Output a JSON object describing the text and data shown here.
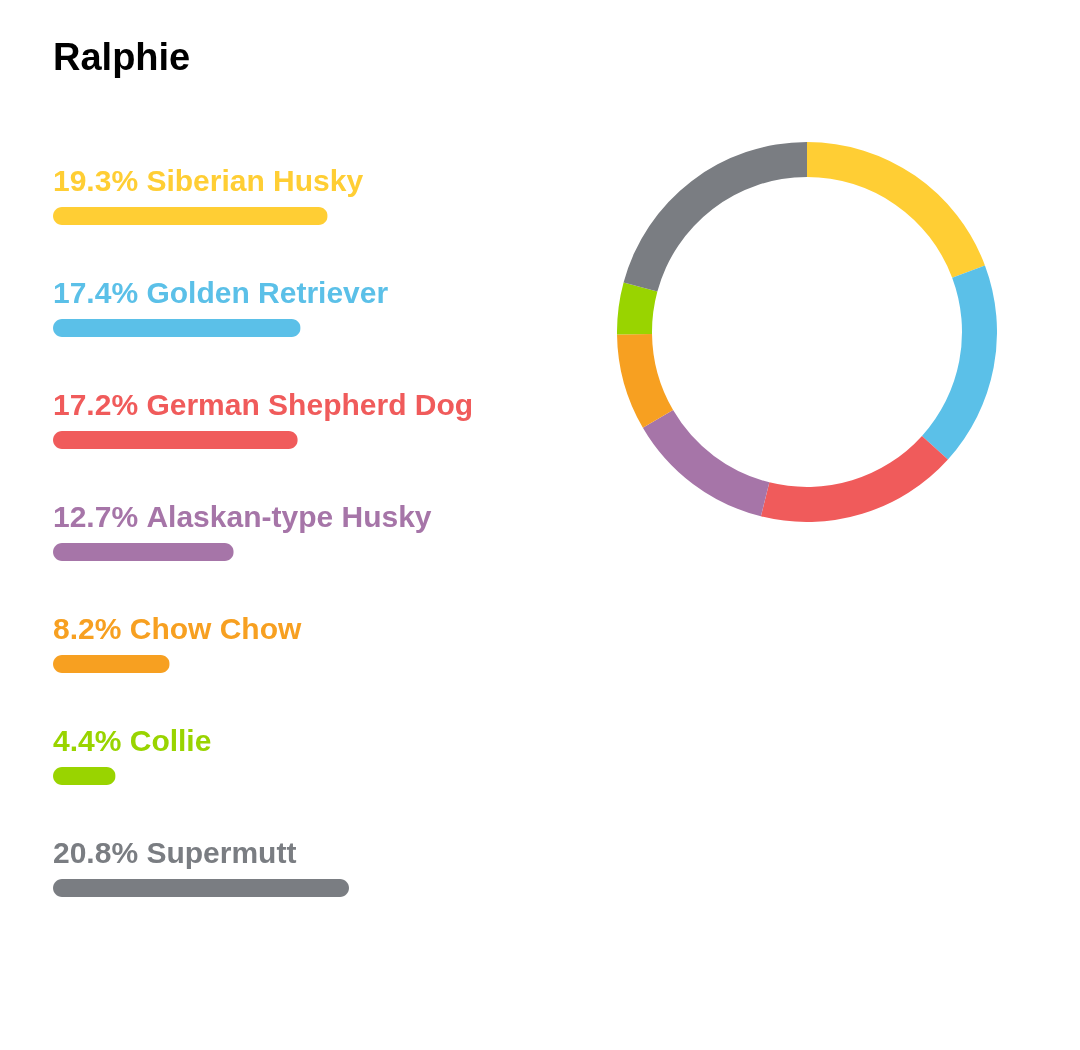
{
  "chart_data": [
    {
      "type": "bar",
      "title": "Ralphie",
      "orientation": "horizontal",
      "categories": [
        "Siberian Husky",
        "Golden Retriever",
        "German Shepherd Dog",
        "Alaskan-type Husky",
        "Chow Chow",
        "Collie",
        "Supermutt"
      ],
      "values": [
        19.3,
        17.4,
        17.2,
        12.7,
        8.2,
        4.4,
        20.8
      ],
      "value_labels": [
        "19.3%",
        "17.4%",
        "17.2%",
        "12.7%",
        "8.2%",
        "4.4%",
        "20.8%"
      ],
      "colors": [
        "#ffce34",
        "#5bc0e8",
        "#f05b5b",
        "#a675a8",
        "#f7a021",
        "#99d400",
        "#7a7d82"
      ]
    },
    {
      "type": "donut",
      "categories": [
        null,
        null,
        null,
        null,
        null,
        null,
        null
      ],
      "values": [
        19.3,
        17.4,
        17.2,
        12.7,
        8.2,
        4.4,
        20.8
      ],
      "colors": [
        "#ffce34",
        "#5bc0e8",
        "#f05b5b",
        "#a675a8",
        "#f7a021",
        "#99d400",
        "#7a7d82"
      ]
    }
  ]
}
